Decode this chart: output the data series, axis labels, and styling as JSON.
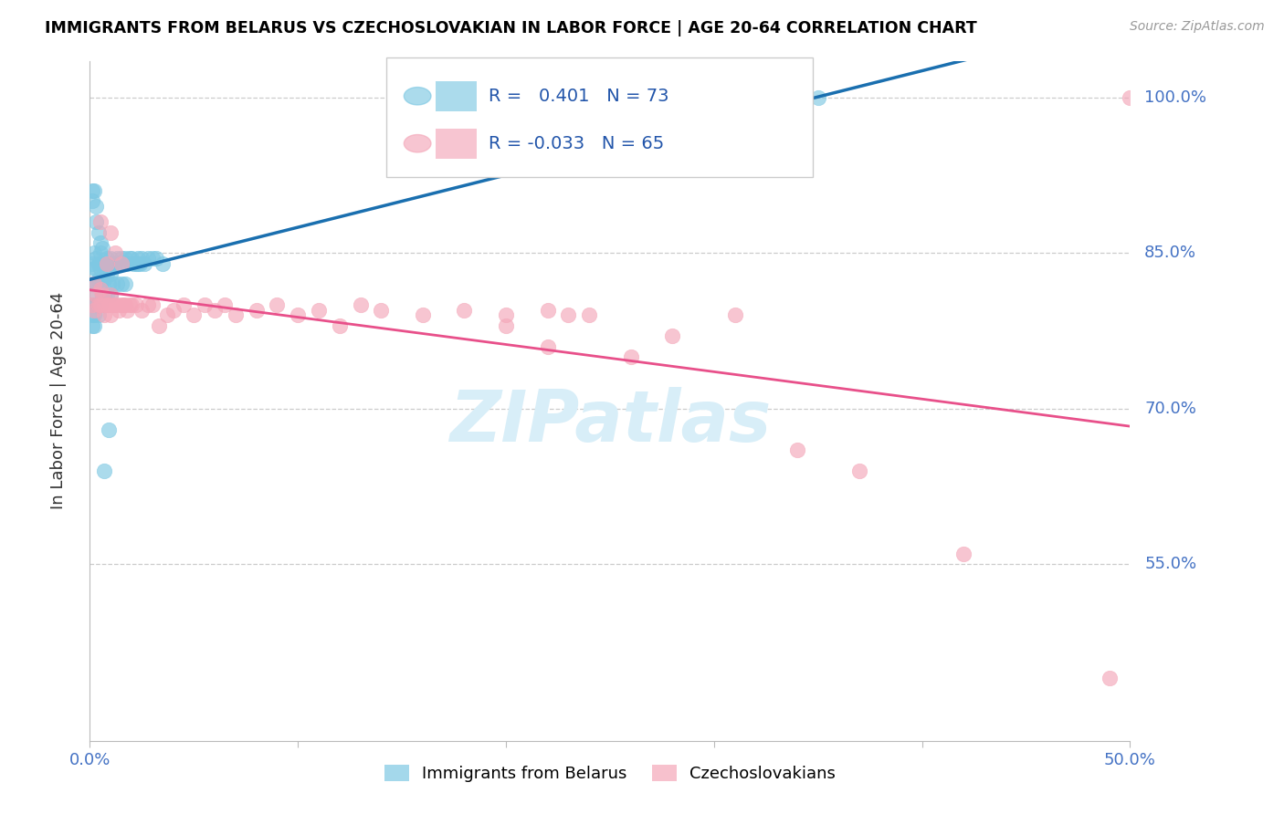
{
  "title": "IMMIGRANTS FROM BELARUS VS CZECHOSLOVAKIAN IN LABOR FORCE | AGE 20-64 CORRELATION CHART",
  "source": "Source: ZipAtlas.com",
  "ylabel": "In Labor Force | Age 20-64",
  "x_min": 0.0,
  "x_max": 0.5,
  "y_min": 0.38,
  "y_max": 1.035,
  "x_tick_labels_left": "0.0%",
  "x_tick_labels_right": "50.0%",
  "y_ticks": [
    0.55,
    0.7,
    0.85,
    1.0
  ],
  "y_tick_labels": [
    "55.0%",
    "70.0%",
    "85.0%",
    "100.0%"
  ],
  "legend_blue_label": "Immigrants from Belarus",
  "legend_pink_label": "Czechoslovakians",
  "R_blue": 0.401,
  "N_blue": 73,
  "R_pink": -0.033,
  "N_pink": 65,
  "blue_color": "#7ec8e3",
  "pink_color": "#f4a7b9",
  "blue_line_color": "#1a6faf",
  "pink_line_color": "#e8508a",
  "watermark_text": "ZIPatlas",
  "watermark_color": "#d8eef8",
  "blue_x": [
    0.001,
    0.001,
    0.001,
    0.001,
    0.001,
    0.002,
    0.002,
    0.002,
    0.002,
    0.002,
    0.002,
    0.002,
    0.003,
    0.003,
    0.003,
    0.003,
    0.004,
    0.004,
    0.004,
    0.005,
    0.005,
    0.005,
    0.005,
    0.006,
    0.006,
    0.006,
    0.007,
    0.007,
    0.007,
    0.008,
    0.008,
    0.008,
    0.009,
    0.009,
    0.01,
    0.01,
    0.01,
    0.011,
    0.011,
    0.012,
    0.013,
    0.013,
    0.014,
    0.015,
    0.015,
    0.016,
    0.017,
    0.017,
    0.018,
    0.019,
    0.02,
    0.021,
    0.022,
    0.023,
    0.023,
    0.024,
    0.025,
    0.026,
    0.028,
    0.03,
    0.032,
    0.035,
    0.001,
    0.001,
    0.002,
    0.003,
    0.003,
    0.004,
    0.005,
    0.006,
    0.007,
    0.009,
    0.35
  ],
  "blue_y": [
    0.84,
    0.82,
    0.8,
    0.79,
    0.78,
    0.85,
    0.835,
    0.82,
    0.81,
    0.8,
    0.79,
    0.78,
    0.845,
    0.835,
    0.82,
    0.8,
    0.84,
    0.825,
    0.79,
    0.85,
    0.835,
    0.82,
    0.8,
    0.84,
    0.825,
    0.81,
    0.84,
    0.825,
    0.81,
    0.845,
    0.83,
    0.81,
    0.84,
    0.82,
    0.845,
    0.83,
    0.81,
    0.84,
    0.82,
    0.84,
    0.845,
    0.82,
    0.84,
    0.845,
    0.82,
    0.84,
    0.845,
    0.82,
    0.84,
    0.845,
    0.845,
    0.84,
    0.84,
    0.845,
    0.84,
    0.84,
    0.845,
    0.84,
    0.845,
    0.845,
    0.845,
    0.84,
    0.91,
    0.9,
    0.91,
    0.895,
    0.88,
    0.87,
    0.86,
    0.855,
    0.64,
    0.68,
    1.0
  ],
  "pink_x": [
    0.001,
    0.002,
    0.002,
    0.003,
    0.004,
    0.005,
    0.005,
    0.006,
    0.007,
    0.007,
    0.008,
    0.009,
    0.01,
    0.01,
    0.011,
    0.012,
    0.013,
    0.014,
    0.015,
    0.016,
    0.017,
    0.018,
    0.019,
    0.02,
    0.022,
    0.025,
    0.028,
    0.03,
    0.033,
    0.037,
    0.04,
    0.045,
    0.05,
    0.055,
    0.06,
    0.065,
    0.07,
    0.08,
    0.09,
    0.1,
    0.11,
    0.12,
    0.13,
    0.14,
    0.16,
    0.18,
    0.2,
    0.22,
    0.24,
    0.005,
    0.008,
    0.01,
    0.012,
    0.015,
    0.2,
    0.22,
    0.23,
    0.26,
    0.28,
    0.31,
    0.34,
    0.37,
    0.42,
    0.49,
    0.5
  ],
  "pink_y": [
    0.8,
    0.82,
    0.795,
    0.81,
    0.8,
    0.815,
    0.8,
    0.81,
    0.8,
    0.79,
    0.8,
    0.8,
    0.81,
    0.79,
    0.8,
    0.8,
    0.8,
    0.795,
    0.8,
    0.8,
    0.8,
    0.795,
    0.8,
    0.8,
    0.8,
    0.795,
    0.8,
    0.8,
    0.78,
    0.79,
    0.795,
    0.8,
    0.79,
    0.8,
    0.795,
    0.8,
    0.79,
    0.795,
    0.8,
    0.79,
    0.795,
    0.78,
    0.8,
    0.795,
    0.79,
    0.795,
    0.79,
    0.795,
    0.79,
    0.88,
    0.84,
    0.87,
    0.85,
    0.84,
    0.78,
    0.76,
    0.79,
    0.75,
    0.77,
    0.79,
    0.66,
    0.64,
    0.56,
    0.44,
    1.0
  ]
}
